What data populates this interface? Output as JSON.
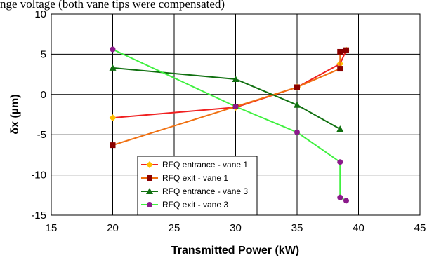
{
  "caption": "nge voltage (both vane tips were compensated)",
  "chart_data": {
    "type": "line",
    "title": "",
    "xlabel": "Transmitted Power (kW)",
    "ylabel": "δx (µm)",
    "xlim": [
      15,
      45
    ],
    "ylim": [
      -15,
      10
    ],
    "xticks": [
      15,
      20,
      25,
      30,
      35,
      40,
      45
    ],
    "yticks": [
      -15,
      -10,
      -5,
      0,
      5,
      10
    ],
    "grid": true,
    "legend_position": "lower-left",
    "series": [
      {
        "name": "RFQ entrance - vane 1",
        "line_color": "#f02020",
        "marker_color": "#ffc000",
        "marker": "diamond",
        "points": [
          [
            20,
            -2.9
          ],
          [
            30,
            -1.6
          ],
          [
            35,
            0.9
          ],
          [
            38.5,
            3.8
          ],
          [
            39,
            5.5
          ]
        ]
      },
      {
        "name": "RFQ exit - vane 1",
        "line_color": "#f07010",
        "marker_color": "#8b0000",
        "marker": "square",
        "points": [
          [
            20,
            -6.3
          ],
          [
            30,
            -1.5
          ],
          [
            35,
            0.9
          ],
          [
            38.5,
            3.2
          ],
          [
            38.5,
            5.3
          ],
          [
            39,
            5.5
          ]
        ]
      },
      {
        "name": "RFQ entrance - vane 3",
        "line_color": "#107010",
        "marker_color": "#107010",
        "marker": "triangle",
        "points": [
          [
            20,
            3.3
          ],
          [
            30,
            1.9
          ],
          [
            35,
            -1.3
          ],
          [
            38.5,
            -4.3
          ]
        ]
      },
      {
        "name": "RFQ exit - vane 3",
        "line_color": "#40f040",
        "marker_color": "#8b1a8b",
        "marker": "circle",
        "points": [
          [
            20,
            5.6
          ],
          [
            30,
            -1.5
          ],
          [
            35,
            -4.7
          ],
          [
            38.5,
            -8.4
          ],
          [
            38.5,
            -12.8
          ],
          [
            39,
            -13.2
          ]
        ]
      }
    ]
  }
}
